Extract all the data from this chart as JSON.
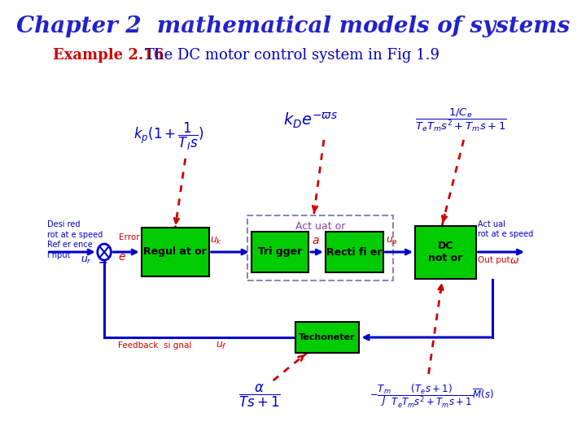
{
  "title": "Chapter 2  mathematical models of systems",
  "title_color": "#2222CC",
  "title_fontsize": 20,
  "example_label": "Example 2.16",
  "example_color": "#CC0000",
  "subtitle": "The DC motor control system in Fig 1.9",
  "subtitle_color": "#0000BB",
  "subtitle_fontsize": 13,
  "bg_color": "#FFFFFF",
  "block_color": "#00CC00",
  "block_edge_color": "#000000",
  "line_color": "#0000CC",
  "dashed_color": "#CC0000",
  "text_blue": "#0000CC",
  "text_red": "#CC0000",
  "actuator_box_color": "#8888BB"
}
